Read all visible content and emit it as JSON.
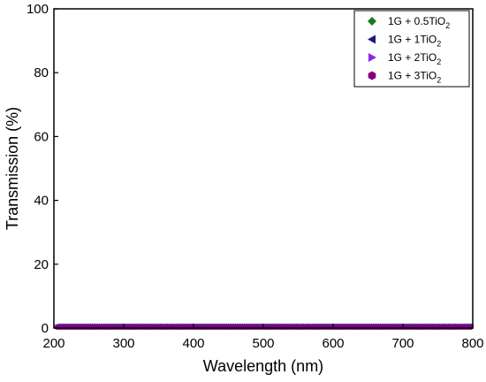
{
  "chart_data": {
    "type": "scatter",
    "xlabel": "Wavelength (nm)",
    "ylabel": "Transmission (%)",
    "xlim": [
      200,
      800
    ],
    "ylim": [
      0,
      100
    ],
    "xticks": [
      200,
      300,
      400,
      500,
      600,
      700,
      800
    ],
    "yticks": [
      0,
      20,
      40,
      60,
      80,
      100
    ],
    "grid": false,
    "legend_position": "top-right",
    "series": [
      {
        "name": "1G + 0.5TiO",
        "sub": "2",
        "marker": "diamond",
        "color": "#1f7a1f",
        "x": [
          200,
          800
        ],
        "y": [
          0.5,
          0.5
        ]
      },
      {
        "name": "1G + 1TiO",
        "sub": "2",
        "marker": "triangle-left",
        "color": "#1a1a80",
        "x": [
          200,
          800
        ],
        "y": [
          0.6,
          0.6
        ]
      },
      {
        "name": "1G + 2TiO",
        "sub": "2",
        "marker": "triangle-right",
        "color": "#8a2be2",
        "x": [
          200,
          800
        ],
        "y": [
          0.4,
          0.4
        ]
      },
      {
        "name": "1G + 3TiO",
        "sub": "2",
        "marker": "hexagon",
        "color": "#800080",
        "x": [
          200,
          800
        ],
        "y": [
          0.3,
          0.3
        ]
      }
    ]
  }
}
